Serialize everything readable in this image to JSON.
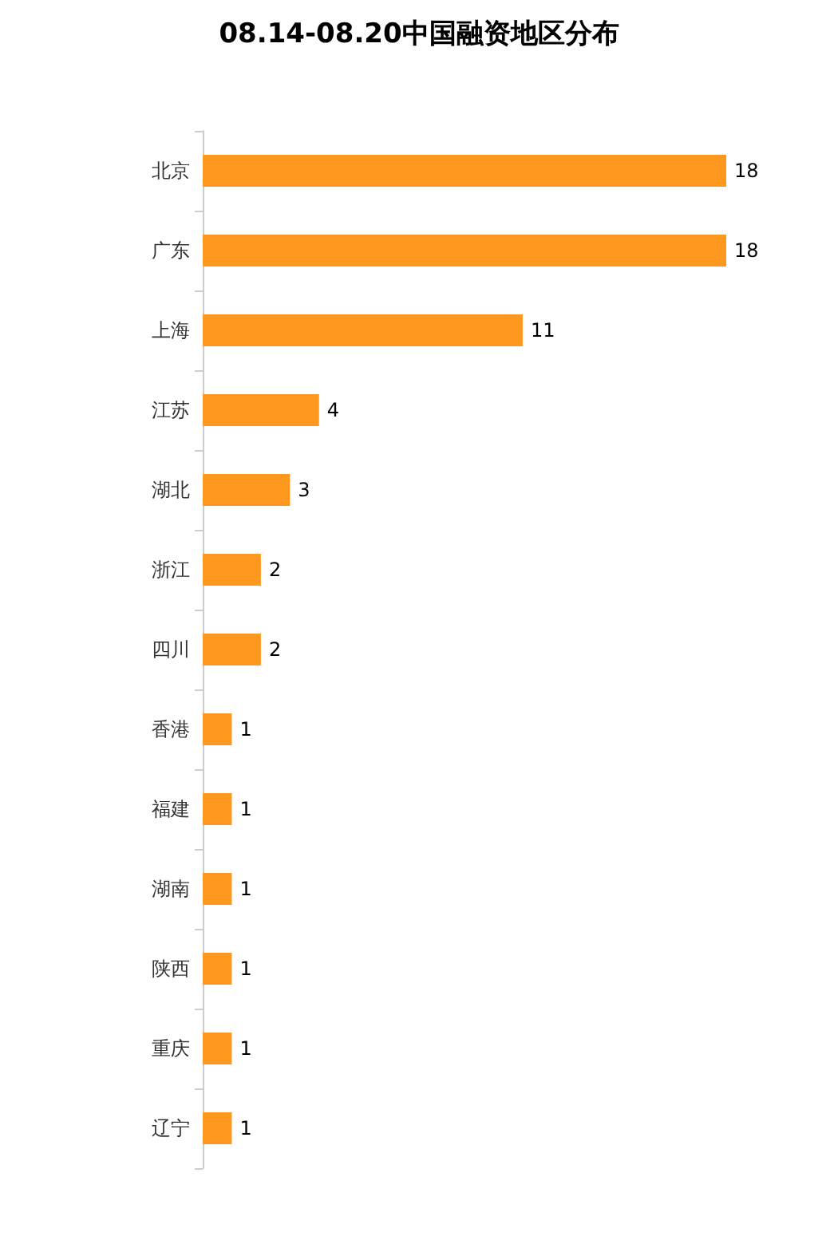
{
  "chart_data": {
    "type": "bar",
    "title": "08.14-08.20中国融资地区分布",
    "orientation": "horizontal",
    "categories": [
      "北京",
      "广东",
      "上海",
      "江苏",
      "湖北",
      "浙江",
      "四川",
      "香港",
      "福建",
      "湖南",
      "陕西",
      "重庆",
      "辽宁"
    ],
    "values": [
      18,
      18,
      11,
      4,
      3,
      2,
      2,
      1,
      1,
      1,
      1,
      1,
      1
    ],
    "color": "#ff981f",
    "data_labels": true
  }
}
